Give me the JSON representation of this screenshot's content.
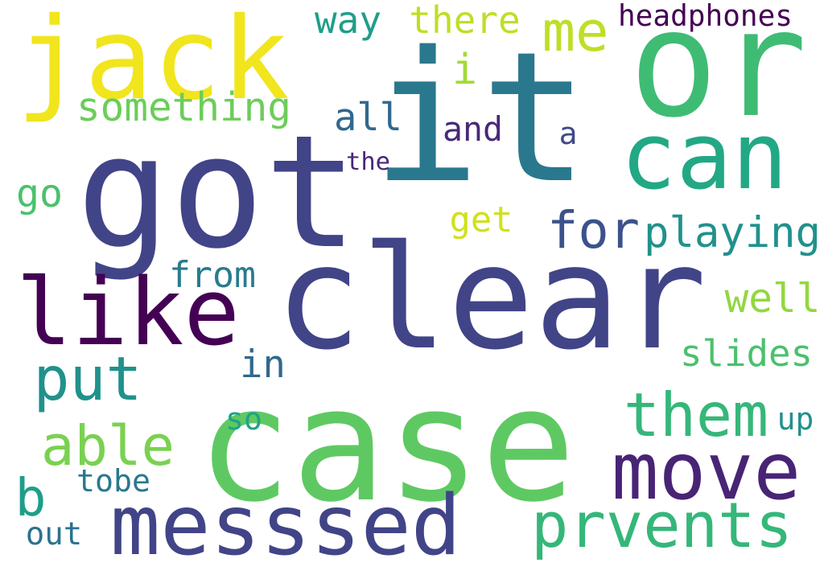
{
  "words": [
    {
      "text": "it",
      "color": "#2a788e"
    },
    {
      "text": "or",
      "color": "#3fbc73"
    },
    {
      "text": "got",
      "color": "#414487"
    },
    {
      "text": "clear",
      "color": "#414487"
    },
    {
      "text": "case",
      "color": "#5ec962"
    },
    {
      "text": "jack",
      "color": "#f1e51d"
    },
    {
      "text": "can",
      "color": "#22a884"
    },
    {
      "text": "like",
      "color": "#440154"
    },
    {
      "text": "messsed",
      "color": "#414487"
    },
    {
      "text": "move",
      "color": "#482475"
    },
    {
      "text": "them",
      "color": "#35b779"
    },
    {
      "text": "prvents",
      "color": "#35b779"
    },
    {
      "text": "put",
      "color": "#21918c"
    },
    {
      "text": "for",
      "color": "#3b528b"
    },
    {
      "text": "playing",
      "color": "#21918c"
    },
    {
      "text": "able",
      "color": "#7ad151"
    },
    {
      "text": "me",
      "color": "#bddf26"
    },
    {
      "text": "something",
      "color": "#6ccd5a"
    },
    {
      "text": "there",
      "color": "#bddf26"
    },
    {
      "text": "headphones",
      "color": "#440154"
    },
    {
      "text": "way",
      "color": "#1f9e89"
    },
    {
      "text": "i",
      "color": "#a0da39"
    },
    {
      "text": "all",
      "color": "#31688e"
    },
    {
      "text": "and",
      "color": "#482878"
    },
    {
      "text": "a",
      "color": "#3e4a89"
    },
    {
      "text": "the",
      "color": "#482878"
    },
    {
      "text": "go",
      "color": "#4ac16d"
    },
    {
      "text": "get",
      "color": "#d0e11c"
    },
    {
      "text": "from",
      "color": "#287c8e"
    },
    {
      "text": "well",
      "color": "#93d741"
    },
    {
      "text": "slides",
      "color": "#4ac16d"
    },
    {
      "text": "in",
      "color": "#31688e"
    },
    {
      "text": "so",
      "color": "#20a386"
    },
    {
      "text": "up",
      "color": "#21918c"
    },
    {
      "text": "b",
      "color": "#1f9e89"
    },
    {
      "text": "tobe",
      "color": "#2a788e"
    },
    {
      "text": "out",
      "color": "#2c728e"
    }
  ]
}
